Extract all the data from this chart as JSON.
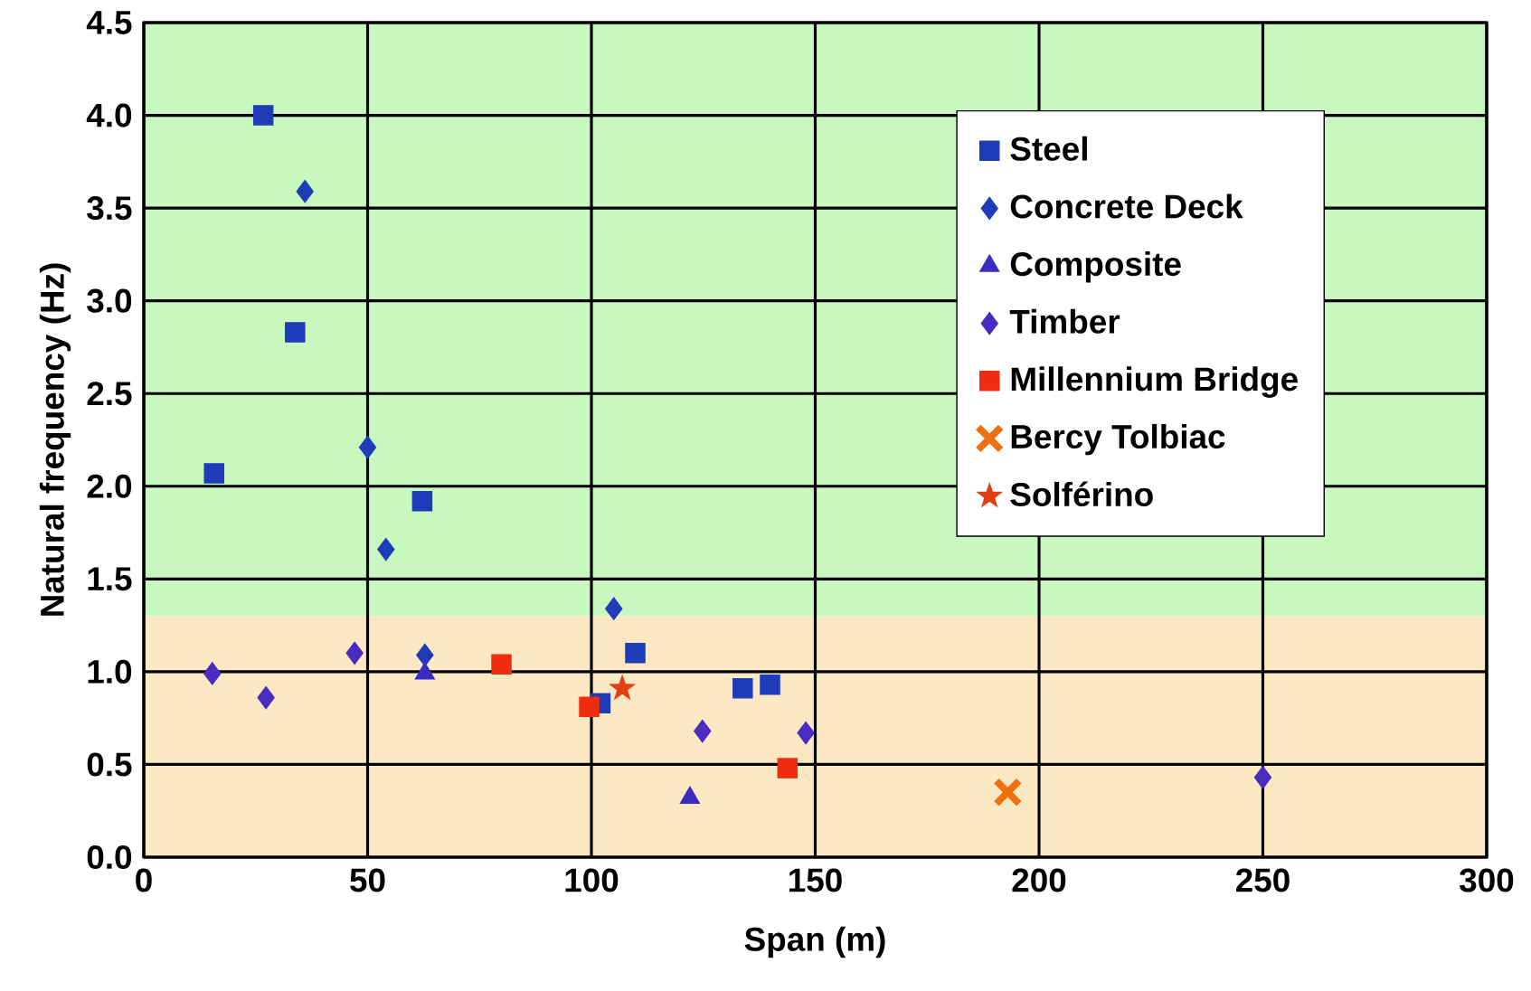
{
  "chart_data": {
    "type": "scatter",
    "xlabel": "Span (m)",
    "ylabel": "Natural frequency (Hz)",
    "xlim": [
      0,
      300
    ],
    "ylim": [
      0,
      4.5
    ],
    "xticks": [
      0,
      50,
      100,
      150,
      200,
      250,
      300
    ],
    "yticks": [
      {
        "value": 0,
        "label": "0.0"
      },
      {
        "value": 0.5,
        "label": "0.5"
      },
      {
        "value": 1,
        "label": "1.0"
      },
      {
        "value": 1.5,
        "label": "1.5"
      },
      {
        "value": 2,
        "label": "2.0"
      },
      {
        "value": 2.5,
        "label": "2.5"
      },
      {
        "value": 3,
        "label": "3.0"
      },
      {
        "value": 3.5,
        "label": "3.5"
      },
      {
        "value": 4,
        "label": "4.0"
      },
      {
        "value": 4.5,
        "label": "4.5"
      }
    ],
    "grid": true,
    "legend": "right",
    "bands": [
      {
        "axis": "y",
        "from": 1.3,
        "to": 4.5,
        "color": "#c8f7c0"
      },
      {
        "axis": "y",
        "from": 0,
        "to": 1.3,
        "color": "#fce9c4"
      }
    ],
    "series": [
      {
        "name": "Steel",
        "color": "#1f3cb8",
        "marker": "square",
        "x": [
          26.7,
          33.8,
          15.7,
          62.2,
          102,
          109.8,
          133.8,
          139.9
        ],
        "values": [
          4.0,
          2.83,
          2.07,
          1.92,
          0.83,
          1.1,
          0.91,
          0.93
        ]
      },
      {
        "name": "Concrete Deck",
        "color": "#1f3cb8",
        "marker": "diamond",
        "x": [
          36,
          50,
          54.1,
          105,
          62.8
        ],
        "values": [
          3.59,
          2.21,
          1.66,
          1.34,
          1.09
        ]
      },
      {
        "name": "Composite",
        "color": "#3a2cc0",
        "marker": "triangle",
        "x": [
          62.8,
          122
        ],
        "values": [
          0.99,
          0.32
        ]
      },
      {
        "name": "Timber",
        "color": "#4a2cc0",
        "marker": "diamond",
        "x": [
          15.3,
          27.3,
          47.1,
          124.8,
          147.9,
          250
        ],
        "values": [
          0.99,
          0.86,
          1.1,
          0.68,
          0.67,
          0.43
        ]
      },
      {
        "name": "Millennium Bridge",
        "color": "#f02c10",
        "marker": "square",
        "x": [
          79.9,
          99.5,
          143.8
        ],
        "values": [
          1.04,
          0.81,
          0.48
        ]
      },
      {
        "name": "Bercy Tolbiac",
        "color": "#f07010",
        "marker": "cross",
        "x": [
          193
        ],
        "values": [
          0.35
        ]
      },
      {
        "name": "Solférino",
        "color": "#e04010",
        "marker": "star",
        "x": [
          106.9
        ],
        "values": [
          0.91
        ]
      }
    ]
  }
}
